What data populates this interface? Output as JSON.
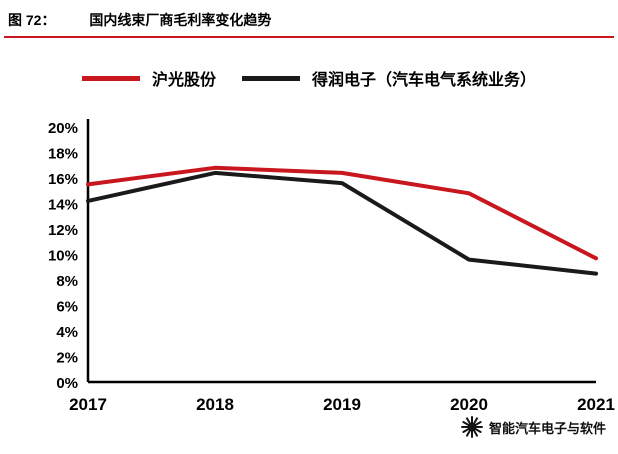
{
  "header": {
    "figure_label": "图 72：",
    "title": "国内线束厂商毛利率变化趋势"
  },
  "chart_data": {
    "type": "line",
    "title": "国内线束厂商毛利率变化趋势",
    "categories": [
      "2017",
      "2018",
      "2019",
      "2020",
      "2021"
    ],
    "series": [
      {
        "name": "沪光股份",
        "color": "#c8171e",
        "values": [
          15.5,
          16.8,
          16.4,
          14.8,
          9.7
        ]
      },
      {
        "name": "得润电子（汽车电气系统业务）",
        "color": "#1a1a1a",
        "values": [
          14.2,
          16.4,
          15.6,
          9.6,
          8.5
        ]
      }
    ],
    "xlabel": "",
    "ylabel": "",
    "ylim": [
      0,
      20
    ],
    "yticks": [
      "0%",
      "2%",
      "4%",
      "6%",
      "8%",
      "10%",
      "12%",
      "14%",
      "16%",
      "18%",
      "20%"
    ],
    "grid": false,
    "legend_position": "top"
  },
  "watermark": {
    "text": "智能汽车电子与软件"
  }
}
